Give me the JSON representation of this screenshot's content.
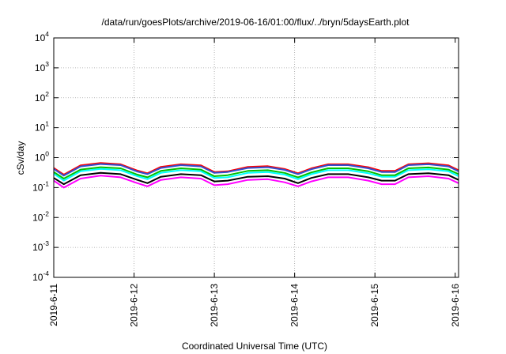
{
  "chart_data": {
    "type": "line",
    "title": "/data/run/goesPlots/archive/2019-06-16/01:00/flux/../bryn/5daysEarth.plot",
    "xlabel": "Coordinated Universal Time (UTC)",
    "ylabel": "cSv/day",
    "x_ticks": [
      "2019-6-11",
      "2019-6-12",
      "2019-6-13",
      "2019-6-14",
      "2019-6-15",
      "2019-6-16"
    ],
    "xlim": [
      "2019-06-11T00:00",
      "2019-06-16T01:00"
    ],
    "y_ticks": [
      {
        "base": "10",
        "exp": "-4"
      },
      {
        "base": "10",
        "exp": "-3"
      },
      {
        "base": "10",
        "exp": "-2"
      },
      {
        "base": "10",
        "exp": "-1"
      },
      {
        "base": "10",
        "exp": "0"
      },
      {
        "base": "10",
        "exp": "1"
      },
      {
        "base": "10",
        "exp": "2"
      },
      {
        "base": "10",
        "exp": "3"
      },
      {
        "base": "10",
        "exp": "4"
      }
    ],
    "ylim": [
      0.0001,
      10000
    ],
    "y_scale": "log",
    "grid": true,
    "x_grid_dates": [
      "2019-06-12",
      "2019-06-13",
      "2019-06-14",
      "2019-06-15"
    ],
    "y_grid_values": [
      0.001,
      0.01,
      0.1,
      1,
      10,
      100,
      1000
    ],
    "series": [
      {
        "color": "#ff00ff",
        "points": [
          [
            "2019-06-11T00:00",
            0.17
          ],
          [
            "2019-06-11T03:00",
            0.1
          ],
          [
            "2019-06-11T08:00",
            0.2
          ],
          [
            "2019-06-11T14:00",
            0.25
          ],
          [
            "2019-06-11T20:00",
            0.22
          ],
          [
            "2019-06-12T01:00",
            0.14
          ],
          [
            "2019-06-12T04:00",
            0.11
          ],
          [
            "2019-06-12T08:00",
            0.18
          ],
          [
            "2019-06-12T14:00",
            0.22
          ],
          [
            "2019-06-12T20:00",
            0.2
          ],
          [
            "2019-06-13T00:00",
            0.12
          ],
          [
            "2019-06-13T04:00",
            0.13
          ],
          [
            "2019-06-13T10:00",
            0.18
          ],
          [
            "2019-06-13T16:00",
            0.19
          ],
          [
            "2019-06-13T21:00",
            0.15
          ],
          [
            "2019-06-14T01:00",
            0.11
          ],
          [
            "2019-06-14T05:00",
            0.16
          ],
          [
            "2019-06-14T10:00",
            0.22
          ],
          [
            "2019-06-14T16:00",
            0.22
          ],
          [
            "2019-06-14T22:00",
            0.17
          ],
          [
            "2019-06-15T02:00",
            0.13
          ],
          [
            "2019-06-15T06:00",
            0.13
          ],
          [
            "2019-06-15T10:00",
            0.22
          ],
          [
            "2019-06-15T16:00",
            0.24
          ],
          [
            "2019-06-15T22:00",
            0.2
          ],
          [
            "2019-06-16T01:00",
            0.14
          ]
        ]
      },
      {
        "color": "#000000",
        "points": [
          [
            "2019-06-11T00:00",
            0.21
          ],
          [
            "2019-06-11T03:00",
            0.13
          ],
          [
            "2019-06-11T08:00",
            0.26
          ],
          [
            "2019-06-11T14:00",
            0.31
          ],
          [
            "2019-06-11T20:00",
            0.28
          ],
          [
            "2019-06-12T01:00",
            0.18
          ],
          [
            "2019-06-12T04:00",
            0.14
          ],
          [
            "2019-06-12T08:00",
            0.23
          ],
          [
            "2019-06-12T14:00",
            0.28
          ],
          [
            "2019-06-12T20:00",
            0.26
          ],
          [
            "2019-06-13T00:00",
            0.16
          ],
          [
            "2019-06-13T04:00",
            0.17
          ],
          [
            "2019-06-13T10:00",
            0.23
          ],
          [
            "2019-06-13T16:00",
            0.24
          ],
          [
            "2019-06-13T21:00",
            0.2
          ],
          [
            "2019-06-14T01:00",
            0.14
          ],
          [
            "2019-06-14T05:00",
            0.21
          ],
          [
            "2019-06-14T10:00",
            0.28
          ],
          [
            "2019-06-14T16:00",
            0.28
          ],
          [
            "2019-06-14T22:00",
            0.22
          ],
          [
            "2019-06-15T02:00",
            0.17
          ],
          [
            "2019-06-15T06:00",
            0.17
          ],
          [
            "2019-06-15T10:00",
            0.28
          ],
          [
            "2019-06-15T16:00",
            0.3
          ],
          [
            "2019-06-15T22:00",
            0.26
          ],
          [
            "2019-06-16T01:00",
            0.18
          ]
        ]
      },
      {
        "color": "#00ffff",
        "points": [
          [
            "2019-06-11T00:00",
            0.29
          ],
          [
            "2019-06-11T03:00",
            0.17
          ],
          [
            "2019-06-11T08:00",
            0.35
          ],
          [
            "2019-06-11T14:00",
            0.42
          ],
          [
            "2019-06-11T20:00",
            0.38
          ],
          [
            "2019-06-12T01:00",
            0.24
          ],
          [
            "2019-06-12T04:00",
            0.19
          ],
          [
            "2019-06-12T08:00",
            0.31
          ],
          [
            "2019-06-12T14:00",
            0.38
          ],
          [
            "2019-06-12T20:00",
            0.35
          ],
          [
            "2019-06-13T00:00",
            0.21
          ],
          [
            "2019-06-13T04:00",
            0.22
          ],
          [
            "2019-06-13T10:00",
            0.31
          ],
          [
            "2019-06-13T16:00",
            0.33
          ],
          [
            "2019-06-13T21:00",
            0.27
          ],
          [
            "2019-06-14T01:00",
            0.19
          ],
          [
            "2019-06-14T05:00",
            0.28
          ],
          [
            "2019-06-14T10:00",
            0.38
          ],
          [
            "2019-06-14T16:00",
            0.38
          ],
          [
            "2019-06-14T22:00",
            0.3
          ],
          [
            "2019-06-15T02:00",
            0.23
          ],
          [
            "2019-06-15T06:00",
            0.23
          ],
          [
            "2019-06-15T10:00",
            0.38
          ],
          [
            "2019-06-15T16:00",
            0.41
          ],
          [
            "2019-06-15T22:00",
            0.35
          ],
          [
            "2019-06-16T01:00",
            0.24
          ]
        ]
      },
      {
        "color": "#00c000",
        "points": [
          [
            "2019-06-11T00:00",
            0.33
          ],
          [
            "2019-06-11T03:00",
            0.2
          ],
          [
            "2019-06-11T08:00",
            0.4
          ],
          [
            "2019-06-11T14:00",
            0.48
          ],
          [
            "2019-06-11T20:00",
            0.44
          ],
          [
            "2019-06-12T01:00",
            0.27
          ],
          [
            "2019-06-12T04:00",
            0.22
          ],
          [
            "2019-06-12T08:00",
            0.36
          ],
          [
            "2019-06-12T14:00",
            0.44
          ],
          [
            "2019-06-12T20:00",
            0.4
          ],
          [
            "2019-06-13T00:00",
            0.24
          ],
          [
            "2019-06-13T04:00",
            0.26
          ],
          [
            "2019-06-13T10:00",
            0.36
          ],
          [
            "2019-06-13T16:00",
            0.38
          ],
          [
            "2019-06-13T21:00",
            0.31
          ],
          [
            "2019-06-14T01:00",
            0.22
          ],
          [
            "2019-06-14T05:00",
            0.32
          ],
          [
            "2019-06-14T10:00",
            0.44
          ],
          [
            "2019-06-14T16:00",
            0.44
          ],
          [
            "2019-06-14T22:00",
            0.35
          ],
          [
            "2019-06-15T02:00",
            0.26
          ],
          [
            "2019-06-15T06:00",
            0.26
          ],
          [
            "2019-06-15T10:00",
            0.44
          ],
          [
            "2019-06-15T16:00",
            0.47
          ],
          [
            "2019-06-15T22:00",
            0.4
          ],
          [
            "2019-06-16T01:00",
            0.28
          ]
        ]
      },
      {
        "color": "#ff0000",
        "points": [
          [
            "2019-06-11T00:00",
            0.45
          ],
          [
            "2019-06-11T03:00",
            0.27
          ],
          [
            "2019-06-11T08:00",
            0.55
          ],
          [
            "2019-06-11T14:00",
            0.66
          ],
          [
            "2019-06-11T20:00",
            0.6
          ],
          [
            "2019-06-12T01:00",
            0.37
          ],
          [
            "2019-06-12T04:00",
            0.3
          ],
          [
            "2019-06-12T08:00",
            0.49
          ],
          [
            "2019-06-12T14:00",
            0.6
          ],
          [
            "2019-06-12T20:00",
            0.55
          ],
          [
            "2019-06-13T00:00",
            0.33
          ],
          [
            "2019-06-13T04:00",
            0.35
          ],
          [
            "2019-06-13T10:00",
            0.49
          ],
          [
            "2019-06-13T16:00",
            0.52
          ],
          [
            "2019-06-13T21:00",
            0.42
          ],
          [
            "2019-06-14T01:00",
            0.3
          ],
          [
            "2019-06-14T05:00",
            0.44
          ],
          [
            "2019-06-14T10:00",
            0.6
          ],
          [
            "2019-06-14T16:00",
            0.6
          ],
          [
            "2019-06-14T22:00",
            0.48
          ],
          [
            "2019-06-15T02:00",
            0.36
          ],
          [
            "2019-06-15T06:00",
            0.36
          ],
          [
            "2019-06-15T10:00",
            0.6
          ],
          [
            "2019-06-15T16:00",
            0.65
          ],
          [
            "2019-06-15T22:00",
            0.55
          ],
          [
            "2019-06-16T01:00",
            0.38
          ]
        ]
      },
      {
        "color": "#3050d0",
        "points": [
          [
            "2019-06-11T00:00",
            0.42
          ],
          [
            "2019-06-11T03:00",
            0.25
          ],
          [
            "2019-06-11T08:00",
            0.51
          ],
          [
            "2019-06-11T14:00",
            0.61
          ],
          [
            "2019-06-11T20:00",
            0.56
          ],
          [
            "2019-06-12T01:00",
            0.34
          ],
          [
            "2019-06-12T04:00",
            0.28
          ],
          [
            "2019-06-12T08:00",
            0.45
          ],
          [
            "2019-06-12T14:00",
            0.56
          ],
          [
            "2019-06-12T20:00",
            0.51
          ],
          [
            "2019-06-13T00:00",
            0.31
          ],
          [
            "2019-06-13T04:00",
            0.33
          ],
          [
            "2019-06-13T10:00",
            0.45
          ],
          [
            "2019-06-13T16:00",
            0.48
          ],
          [
            "2019-06-13T21:00",
            0.39
          ],
          [
            "2019-06-14T01:00",
            0.28
          ],
          [
            "2019-06-14T05:00",
            0.41
          ],
          [
            "2019-06-14T10:00",
            0.56
          ],
          [
            "2019-06-14T16:00",
            0.56
          ],
          [
            "2019-06-14T22:00",
            0.44
          ],
          [
            "2019-06-15T02:00",
            0.33
          ],
          [
            "2019-06-15T06:00",
            0.33
          ],
          [
            "2019-06-15T10:00",
            0.56
          ],
          [
            "2019-06-15T16:00",
            0.6
          ],
          [
            "2019-06-15T22:00",
            0.51
          ],
          [
            "2019-06-16T01:00",
            0.35
          ]
        ]
      }
    ]
  }
}
